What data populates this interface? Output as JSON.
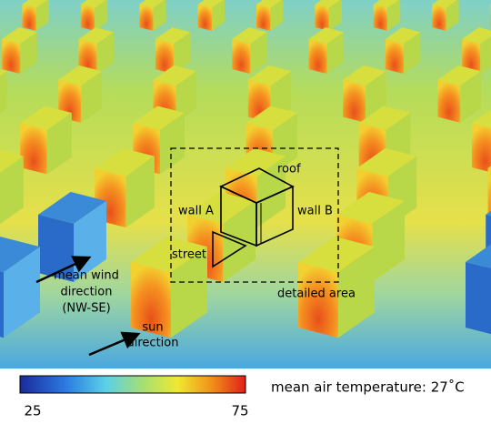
{
  "labels": {
    "roof": "roof",
    "wall_a": "wall A",
    "wall_b": "wall B",
    "street": "street",
    "detailed_area": "detailed area",
    "wind": [
      "mean wind",
      "direction",
      "(NW-SE)"
    ],
    "sun": [
      "sun",
      "direction"
    ]
  },
  "colorbar": {
    "min": "25",
    "max": "75"
  },
  "caption": "mean air temperature: 27˚C"
}
